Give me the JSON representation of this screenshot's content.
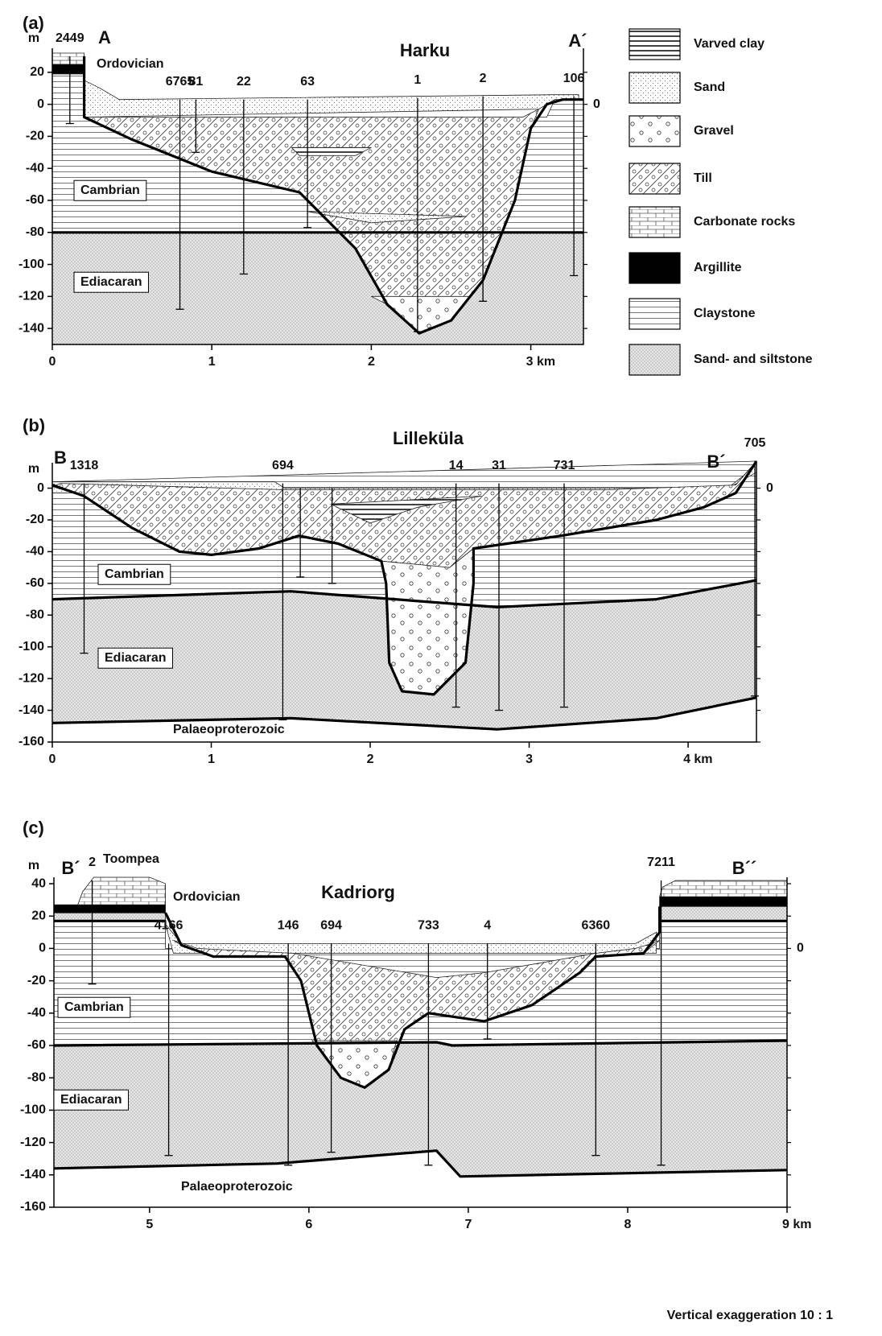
{
  "legend": [
    "Varved clay",
    "Sand",
    "Gravel",
    "Till",
    "Carbonate rocks",
    "Argillite",
    "Claystone",
    "Sand- and siltstone"
  ],
  "panels": [
    {
      "tag": "(a)",
      "title": "Harku",
      "y_unit": "m",
      "ends": [
        "A",
        "A´"
      ],
      "right_tick": 0,
      "xlim": [
        0,
        3.33
      ],
      "ylim": [
        -150,
        35
      ],
      "xticks": [
        0,
        1,
        2,
        {
          "value": 3,
          "label": "3 km"
        }
      ],
      "yticks": [
        20,
        0,
        -20,
        -40,
        -60,
        -80,
        -100,
        -120,
        -140
      ],
      "units": [
        "Ordovician",
        "Cambrian",
        "Ediacaran"
      ],
      "boreholes": [
        {
          "label": "2449",
          "x": 0.11,
          "top": 30,
          "bottom": -12
        },
        {
          "label": "6765",
          "x": 0.8,
          "top": 3,
          "bottom": -128
        },
        {
          "label": "81",
          "x": 0.9,
          "top": 3,
          "bottom": -30
        },
        {
          "label": "22",
          "x": 1.2,
          "top": 3,
          "bottom": -106
        },
        {
          "label": "63",
          "x": 1.6,
          "top": 3,
          "bottom": -77
        },
        {
          "label": "1",
          "x": 2.29,
          "top": 4,
          "bottom": -142
        },
        {
          "label": "2",
          "x": 2.7,
          "top": 5,
          "bottom": -123
        },
        {
          "label": "106",
          "x": 3.27,
          "top": 5,
          "bottom": -107
        }
      ]
    },
    {
      "tag": "(b)",
      "title": "Lilleküla",
      "y_unit": "m",
      "ends": [
        "B",
        "B´"
      ],
      "right_tick": 0,
      "xlim": [
        0,
        4.43
      ],
      "ylim": [
        -160,
        16
      ],
      "xticks": [
        0,
        1,
        2,
        3,
        {
          "value": 4,
          "label": "4 km"
        }
      ],
      "yticks": [
        0,
        -20,
        -40,
        -60,
        -80,
        -100,
        -120,
        -140,
        -160
      ],
      "units": [
        "Cambrian",
        "Ediacaran",
        "Palaeoproterozoic"
      ],
      "boreholes": [
        {
          "label": "1318",
          "x": 0.2,
          "top": 3,
          "bottom": -104
        },
        {
          "label": "694",
          "x": 1.45,
          "top": 3,
          "bottom": -146
        },
        {
          "label": null,
          "x": 1.56,
          "top": 0,
          "bottom": -56
        },
        {
          "label": null,
          "x": 1.76,
          "top": 0,
          "bottom": -60
        },
        {
          "label": "14",
          "x": 2.54,
          "top": 3,
          "bottom": -138
        },
        {
          "label": "31",
          "x": 2.81,
          "top": 3,
          "bottom": -140
        },
        {
          "label": "731",
          "x": 3.22,
          "top": 3,
          "bottom": -138
        },
        {
          "label": "705",
          "x": 4.42,
          "top": 17,
          "bottom": -131
        }
      ]
    },
    {
      "tag": "(c)",
      "title": "Kadriorg",
      "y_unit": "m",
      "ends": [
        "B´",
        "B´´"
      ],
      "right_tick": 0,
      "xlim": [
        4.4,
        9
      ],
      "ylim": [
        -160,
        44
      ],
      "xticks": [
        5,
        6,
        7,
        8,
        {
          "value": 9,
          "label": "9 km"
        }
      ],
      "yticks": [
        40,
        20,
        0,
        -20,
        -40,
        -60,
        -80,
        -100,
        -120,
        -140,
        -160
      ],
      "units": [
        "Toompea",
        "Ordovician",
        "Cambrian",
        "Ediacaran",
        "Palaeoproterozoic"
      ],
      "boreholes": [
        {
          "label": "2",
          "x": 4.64,
          "top": 42,
          "bottom": -22
        },
        {
          "label": "4166",
          "x": 5.12,
          "top": 3,
          "bottom": -128
        },
        {
          "label": "146",
          "x": 5.87,
          "top": 3,
          "bottom": -134
        },
        {
          "label": "694",
          "x": 6.14,
          "top": 3,
          "bottom": -126
        },
        {
          "label": "733",
          "x": 6.75,
          "top": 3,
          "bottom": -134
        },
        {
          "label": "4",
          "x": 7.12,
          "top": 3,
          "bottom": -56
        },
        {
          "label": "6360",
          "x": 7.8,
          "top": 3,
          "bottom": -128
        },
        {
          "label": "7211",
          "x": 8.21,
          "top": 42,
          "bottom": -134
        }
      ]
    }
  ],
  "footer": "Vertical exaggeration 10 : 1"
}
